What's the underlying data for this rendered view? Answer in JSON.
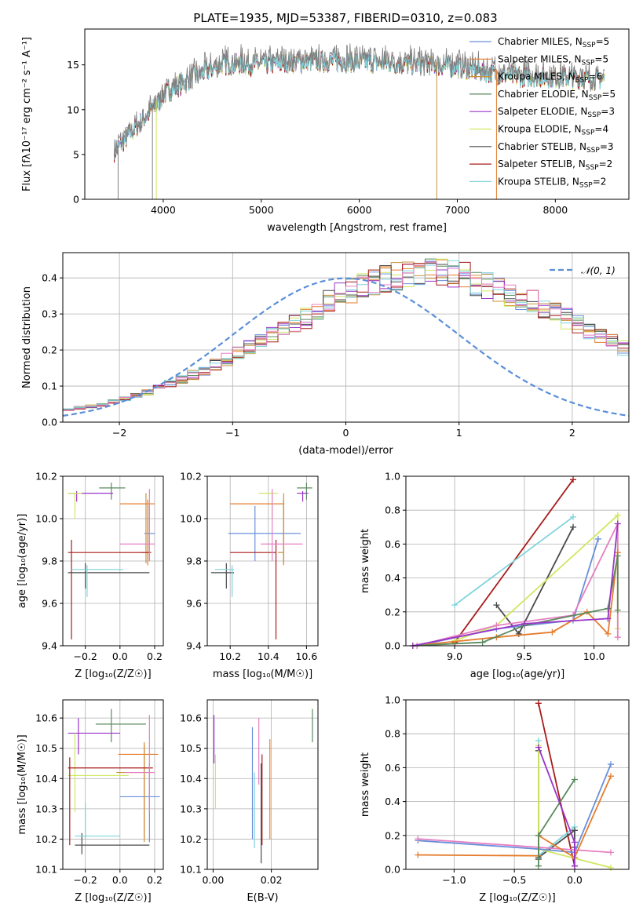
{
  "colors": {
    "chab_miles": "#6a8fd9",
    "salp_miles": "#e57d2e",
    "krou_miles": "#c9923f",
    "chab_elodie": "#5a8a5e",
    "salp_elodie": "#9a35c9",
    "krou_elodie": "#cfe860",
    "chab_stelib": "#4a4a4a",
    "salp_stelib": "#a81b1b",
    "krou_stelib": "#7fd3dc",
    "extra_pink": "#e67fc2",
    "norm": "#5b8fd9"
  },
  "chart_data": [
    {
      "id": "spectrum",
      "type": "line",
      "title": "PLATE=1935, MJD=53387, FIBERID=0310, z=0.083",
      "xlabel": "wavelength [Angstrom, rest frame]",
      "ylabel": "Flux [fλ10⁻¹⁷ erg cm⁻² s⁻¹ A⁻¹]",
      "xlim": [
        3200,
        8750
      ],
      "ylim": [
        0,
        19
      ],
      "xticks": [
        "4000",
        "5000",
        "6000",
        "7000",
        "8000"
      ],
      "yticks": [
        "0",
        "5",
        "10",
        "15"
      ],
      "legend_position": "top-right",
      "series_description": [
        {
          "name": "Chabrier MILES, N",
          "sub": "SSP",
          "eq": "=5",
          "color": "#6a8fd9"
        },
        {
          "name": "Salpeter MILES, N",
          "sub": "SSP",
          "eq": "=5",
          "color": "#e57d2e"
        },
        {
          "name": "Kroupa MILES, N",
          "sub": "SSP",
          "eq": "=6",
          "color": "#c9923f"
        },
        {
          "name": "Chabrier ELODIE, N",
          "sub": "SSP",
          "eq": "=5",
          "color": "#5a8a5e"
        },
        {
          "name": "Salpeter ELODIE, N",
          "sub": "SSP",
          "eq": "=3",
          "color": "#9a35c9"
        },
        {
          "name": "Kroupa ELODIE, N",
          "sub": "SSP",
          "eq": "=4",
          "color": "#cfe860"
        },
        {
          "name": "Chabrier STELIB, N",
          "sub": "SSP",
          "eq": "=3",
          "color": "#4a4a4a"
        },
        {
          "name": "Salpeter STELIB, N",
          "sub": "SSP",
          "eq": "=2",
          "color": "#a81b1b"
        },
        {
          "name": "Kroupa STELIB, N",
          "sub": "SSP",
          "eq": "=2",
          "color": "#7fd3dc"
        }
      ],
      "continuum_anchors": {
        "x": [
          3500,
          3700,
          3900,
          4000,
          4300,
          4600,
          5000,
          5500,
          6000,
          6500,
          7000,
          7500,
          8000,
          8500
        ],
        "y": [
          5.5,
          8.0,
          10.5,
          12.0,
          14.0,
          15.5,
          15.5,
          15.8,
          15.8,
          15.5,
          15.2,
          14.2,
          14.0,
          13.8
        ]
      }
    },
    {
      "id": "residuals",
      "type": "bar",
      "xlabel": "(data-model)/error",
      "ylabel": "Normed distribution",
      "xlim": [
        -2.5,
        2.5
      ],
      "ylim": [
        0,
        0.47
      ],
      "xticks": [
        "−2",
        "−1",
        "0",
        "1",
        "2"
      ],
      "yticks": [
        "0.0",
        "0.1",
        "0.2",
        "0.3",
        "0.4"
      ],
      "legend": "𝒩(0, 1)",
      "bin_width": 0.1,
      "bin_start": -2.5,
      "base_values": [
        0.035,
        0.04,
        0.045,
        0.05,
        0.058,
        0.066,
        0.075,
        0.085,
        0.096,
        0.108,
        0.121,
        0.134,
        0.148,
        0.163,
        0.178,
        0.194,
        0.21,
        0.227,
        0.244,
        0.26,
        0.277,
        0.293,
        0.309,
        0.324,
        0.339,
        0.352,
        0.364,
        0.375,
        0.384,
        0.392,
        0.398,
        0.402,
        0.404,
        0.404,
        0.402,
        0.398,
        0.392,
        0.384,
        0.375,
        0.364,
        0.352,
        0.339,
        0.324,
        0.309,
        0.293,
        0.277,
        0.26,
        0.244,
        0.227,
        0.21
      ]
    },
    {
      "id": "age_vs_Z",
      "type": "scatter",
      "xlabel": "Z [log₁₀(Z/Z☉)]",
      "ylabel": "age  [log₁₀(age/yr)]",
      "xlim": [
        -0.33,
        0.25
      ],
      "ylim": [
        9.4,
        10.2
      ],
      "xticks": [
        "−0.2",
        "0.0",
        "0.2"
      ],
      "yticks": [
        "9.4",
        "9.6",
        "9.8",
        "10.0",
        "10.2"
      ],
      "points": [
        {
          "color": "#6a8fd9",
          "x": 0.17,
          "xlo": 0.14,
          "xhi": 0.2,
          "y": 9.93,
          "ylo": 9.8,
          "yhi": 10.06
        },
        {
          "color": "#e57d2e",
          "x": 0.16,
          "xlo": 0.0,
          "xhi": 0.2,
          "y": 10.07,
          "ylo": 9.78,
          "yhi": 10.09
        },
        {
          "color": "#c9923f",
          "x": 0.15,
          "xlo": 0.12,
          "xhi": 0.18,
          "y": 9.84,
          "ylo": 9.79,
          "yhi": 10.12
        },
        {
          "color": "#5a8a5e",
          "x": -0.05,
          "xlo": -0.12,
          "xhi": 0.03,
          "y": 10.145,
          "ylo": 10.09,
          "yhi": 10.17
        },
        {
          "color": "#9a35c9",
          "x": -0.25,
          "xlo": -0.3,
          "xhi": -0.04,
          "y": 10.12,
          "ylo": 10.08,
          "yhi": 10.13
        },
        {
          "color": "#cfe860",
          "x": -0.26,
          "xlo": -0.3,
          "xhi": -0.22,
          "y": 10.12,
          "ylo": 10.0,
          "yhi": 10.12
        },
        {
          "color": "#4a4a4a",
          "x": -0.2,
          "xlo": -0.3,
          "xhi": 0.17,
          "y": 9.745,
          "ylo": 9.67,
          "yhi": 9.79
        },
        {
          "color": "#a81b1b",
          "x": -0.28,
          "xlo": -0.3,
          "xhi": 0.18,
          "y": 9.84,
          "ylo": 9.43,
          "yhi": 9.9
        },
        {
          "color": "#7fd3dc",
          "x": -0.19,
          "xlo": -0.28,
          "xhi": 0.02,
          "y": 9.76,
          "ylo": 9.63,
          "yhi": 9.78
        },
        {
          "color": "#e67fc2",
          "x": 0.17,
          "xlo": 0.0,
          "xhi": 0.2,
          "y": 9.88,
          "ylo": 9.8,
          "yhi": 10.14
        }
      ]
    },
    {
      "id": "age_vs_mass",
      "type": "scatter",
      "xlabel": "mass [log₁₀(M/M☉)]",
      "ylabel": "",
      "xlim": [
        10.08,
        10.66
      ],
      "ylim": [
        9.4,
        10.2
      ],
      "xticks": [
        "10.2",
        "10.4",
        "10.6"
      ],
      "yticks": [
        "9.4",
        "9.6",
        "9.8",
        "10.0",
        "10.2"
      ],
      "points": [
        {
          "color": "#6a8fd9",
          "x": 10.33,
          "xlo": 10.19,
          "xhi": 10.57,
          "y": 9.93,
          "ylo": 9.8,
          "yhi": 10.06
        },
        {
          "color": "#e57d2e",
          "x": 10.48,
          "xlo": 10.2,
          "xhi": 10.48,
          "y": 10.07,
          "ylo": 9.78,
          "yhi": 10.09
        },
        {
          "color": "#c9923f",
          "x": 10.48,
          "xlo": 10.45,
          "xhi": 10.48,
          "y": 9.84,
          "ylo": 9.79,
          "yhi": 10.12
        },
        {
          "color": "#5a8a5e",
          "x": 10.6,
          "xlo": 10.55,
          "xhi": 10.63,
          "y": 10.145,
          "ylo": 10.09,
          "yhi": 10.17
        },
        {
          "color": "#9a35c9",
          "x": 10.58,
          "xlo": 10.55,
          "xhi": 10.61,
          "y": 10.12,
          "ylo": 10.08,
          "yhi": 10.13
        },
        {
          "color": "#cfe860",
          "x": 10.42,
          "xlo": 10.35,
          "xhi": 10.45,
          "y": 10.12,
          "ylo": 10.0,
          "yhi": 10.12
        },
        {
          "color": "#4a4a4a",
          "x": 10.18,
          "xlo": 10.1,
          "xhi": 10.22,
          "y": 9.745,
          "ylo": 9.67,
          "yhi": 9.79
        },
        {
          "color": "#a81b1b",
          "x": 10.44,
          "xlo": 10.2,
          "xhi": 10.44,
          "y": 9.84,
          "ylo": 9.43,
          "yhi": 9.9
        },
        {
          "color": "#7fd3dc",
          "x": 10.21,
          "xlo": 10.12,
          "xhi": 10.22,
          "y": 9.76,
          "ylo": 9.63,
          "yhi": 9.78
        },
        {
          "color": "#e67fc2",
          "x": 10.42,
          "xlo": 10.36,
          "xhi": 10.58,
          "y": 9.88,
          "ylo": 9.8,
          "yhi": 10.14
        }
      ]
    },
    {
      "id": "mass_weight_vs_age",
      "type": "line",
      "xlabel": "age  [log₁₀(age/yr)]",
      "ylabel": "mass weight",
      "xlim": [
        8.65,
        10.25
      ],
      "ylim": [
        0,
        1
      ],
      "xticks": [
        "9.0",
        "9.5",
        "10.0"
      ],
      "yticks": [
        "0.0",
        "0.2",
        "0.4",
        "0.6",
        "0.8",
        "1.0"
      ],
      "series": [
        {
          "color": "#a81b1b",
          "x": [
            9.0,
            9.85
          ],
          "y": [
            0.02,
            0.98
          ]
        },
        {
          "color": "#7fd3dc",
          "x": [
            9.0,
            9.85
          ],
          "y": [
            0.24,
            0.76
          ]
        },
        {
          "color": "#4a4a4a",
          "x": [
            9.3,
            9.46,
            9.85
          ],
          "y": [
            0.24,
            0.07,
            0.7
          ]
        },
        {
          "color": "#cfe860",
          "x": [
            9.0,
            9.3,
            10.17,
            10.17
          ],
          "y": [
            0.03,
            0.12,
            0.77,
            0.1
          ]
        },
        {
          "color": "#6a8fd9",
          "x": [
            8.73,
            9.3,
            9.85,
            10.03
          ],
          "y": [
            0.0,
            0.1,
            0.15,
            0.63
          ]
        },
        {
          "color": "#e67fc2",
          "x": [
            8.73,
            9.3,
            9.85,
            10.17,
            10.17
          ],
          "y": [
            0.0,
            0.12,
            0.18,
            0.72,
            0.05
          ]
        },
        {
          "color": "#e57d2e",
          "x": [
            8.7,
            9.3,
            9.7,
            9.95,
            10.1,
            10.17
          ],
          "y": [
            0.0,
            0.05,
            0.08,
            0.2,
            0.07,
            0.55
          ]
        },
        {
          "color": "#5a8a5e",
          "x": [
            8.7,
            9.2,
            9.5,
            10.1,
            10.17,
            10.17
          ],
          "y": [
            0.0,
            0.02,
            0.12,
            0.22,
            0.53,
            0.21
          ]
        },
        {
          "color": "#9a35c9",
          "x": [
            8.7,
            9.5,
            10.1,
            10.17
          ],
          "y": [
            0.0,
            0.13,
            0.16,
            0.72
          ]
        }
      ]
    },
    {
      "id": "mass_vs_Z",
      "type": "scatter",
      "xlabel": "Z [log₁₀(Z/Z☉)]",
      "ylabel": "mass [log₁₀(M/M☉)]",
      "xlim": [
        -0.33,
        0.25
      ],
      "ylim": [
        10.1,
        10.66
      ],
      "xticks": [
        "−0.2",
        "0.0",
        "0.2"
      ],
      "yticks": [
        "10.1",
        "10.2",
        "10.3",
        "10.4",
        "10.5",
        "10.6"
      ],
      "points": [
        {
          "color": "#6a8fd9",
          "x": 0.17,
          "xlo": 0.0,
          "xhi": 0.23,
          "y": 10.34,
          "ylo": 10.19,
          "yhi": 10.45
        },
        {
          "color": "#e57d2e",
          "x": 0.14,
          "xlo": -0.01,
          "xhi": 0.22,
          "y": 10.48,
          "ylo": 10.2,
          "yhi": 10.51
        },
        {
          "color": "#c9923f",
          "x": 0.14,
          "xlo": -0.02,
          "xhi": 0.18,
          "y": 10.42,
          "ylo": 10.19,
          "yhi": 10.52
        },
        {
          "color": "#5a8a5e",
          "x": -0.05,
          "xlo": -0.14,
          "xhi": 0.15,
          "y": 10.58,
          "ylo": 10.52,
          "yhi": 10.63
        },
        {
          "color": "#9a35c9",
          "x": -0.24,
          "xlo": -0.3,
          "xhi": 0.0,
          "y": 10.55,
          "ylo": 10.48,
          "yhi": 10.6
        },
        {
          "color": "#cfe860",
          "x": -0.26,
          "xlo": -0.3,
          "xhi": 0.05,
          "y": 10.41,
          "ylo": 10.29,
          "yhi": 10.55
        },
        {
          "color": "#4a4a4a",
          "x": -0.22,
          "xlo": -0.26,
          "xhi": 0.17,
          "y": 10.18,
          "ylo": 10.15,
          "yhi": 10.22
        },
        {
          "color": "#a81b1b",
          "x": -0.29,
          "xlo": -0.3,
          "xhi": 0.19,
          "y": 10.435,
          "ylo": 10.18,
          "yhi": 10.47
        },
        {
          "color": "#7fd3dc",
          "x": -0.2,
          "xlo": -0.26,
          "xhi": 0.0,
          "y": 10.21,
          "ylo": 10.2,
          "yhi": 10.32
        },
        {
          "color": "#e67fc2",
          "x": 0.17,
          "xlo": 0.03,
          "xhi": 0.2,
          "y": 10.42,
          "ylo": 10.29,
          "yhi": 10.61
        }
      ]
    },
    {
      "id": "mass_vs_ebv",
      "type": "scatter",
      "xlabel": "E(B-V)",
      "ylabel": "",
      "xlim": [
        -0.002,
        0.036
      ],
      "ylim": [
        10.1,
        10.66
      ],
      "xticks": [
        "0.00",
        "0.02"
      ],
      "yticks": [
        "10.1",
        "10.2",
        "10.3",
        "10.4",
        "10.5",
        "10.6"
      ],
      "points": [
        {
          "color": "#9a35c9",
          "x": 0.0003,
          "ylo": 10.45,
          "yhi": 10.61
        },
        {
          "color": "#cfe860",
          "x": 0.0008,
          "ylo": 10.3,
          "yhi": 10.48
        },
        {
          "color": "#6a8fd9",
          "x": 0.0135,
          "ylo": 10.2,
          "yhi": 10.57
        },
        {
          "color": "#7fd3dc",
          "x": 0.0142,
          "ylo": 10.17,
          "yhi": 10.42
        },
        {
          "color": "#e67fc2",
          "x": 0.0157,
          "ylo": 10.38,
          "yhi": 10.6
        },
        {
          "color": "#4a4a4a",
          "x": 0.0165,
          "ylo": 10.12,
          "yhi": 10.45
        },
        {
          "color": "#a81b1b",
          "x": 0.0168,
          "ylo": 10.18,
          "yhi": 10.48
        },
        {
          "color": "#e57d2e",
          "x": 0.0195,
          "ylo": 10.2,
          "yhi": 10.53
        },
        {
          "color": "#5a8a5e",
          "x": 0.0341,
          "ylo": 10.52,
          "yhi": 10.63
        }
      ]
    },
    {
      "id": "mass_weight_vs_Z",
      "type": "line",
      "xlabel": "Z [log₁₀(Z/Z☉)]",
      "ylabel": "mass weight",
      "xlim": [
        -1.4,
        0.45
      ],
      "ylim": [
        0,
        1
      ],
      "xticks": [
        "−1.0",
        "−0.5",
        "0.0"
      ],
      "yticks": [
        "0.0",
        "0.2",
        "0.4",
        "0.6",
        "0.8",
        "1.0"
      ],
      "series": [
        {
          "color": "#a81b1b",
          "x": [
            -0.3,
            0.0
          ],
          "y": [
            0.98,
            0.02
          ]
        },
        {
          "color": "#7fd3dc",
          "x": [
            -0.3,
            -0.3,
            0.0
          ],
          "y": [
            0.76,
            0.08,
            0.25
          ]
        },
        {
          "color": "#4a4a4a",
          "x": [
            -0.3,
            -0.3,
            -0.3,
            0.0,
            0.0
          ],
          "y": [
            0.7,
            0.06,
            0.07,
            0.23,
            0.13
          ]
        },
        {
          "color": "#cfe860",
          "x": [
            -0.3,
            -0.3,
            0.3
          ],
          "y": [
            0.73,
            0.12,
            0.01
          ]
        },
        {
          "color": "#6a8fd9",
          "x": [
            -1.3,
            -0.3,
            0.0,
            0.3
          ],
          "y": [
            0.17,
            0.12,
            0.1,
            0.62
          ]
        },
        {
          "color": "#e67fc2",
          "x": [
            -1.3,
            0.3
          ],
          "y": [
            0.18,
            0.1
          ]
        },
        {
          "color": "#e57d2e",
          "x": [
            -1.3,
            -0.3,
            -0.3,
            0.0,
            0.3
          ],
          "y": [
            0.085,
            0.08,
            0.2,
            0.07,
            0.55
          ]
        },
        {
          "color": "#5a8a5e",
          "x": [
            -0.3,
            -0.3,
            0.0
          ],
          "y": [
            0.02,
            0.2,
            0.53
          ]
        },
        {
          "color": "#9a35c9",
          "x": [
            -0.3,
            0.0,
            0.0
          ],
          "y": [
            0.72,
            0.16,
            0.02
          ]
        }
      ]
    }
  ]
}
